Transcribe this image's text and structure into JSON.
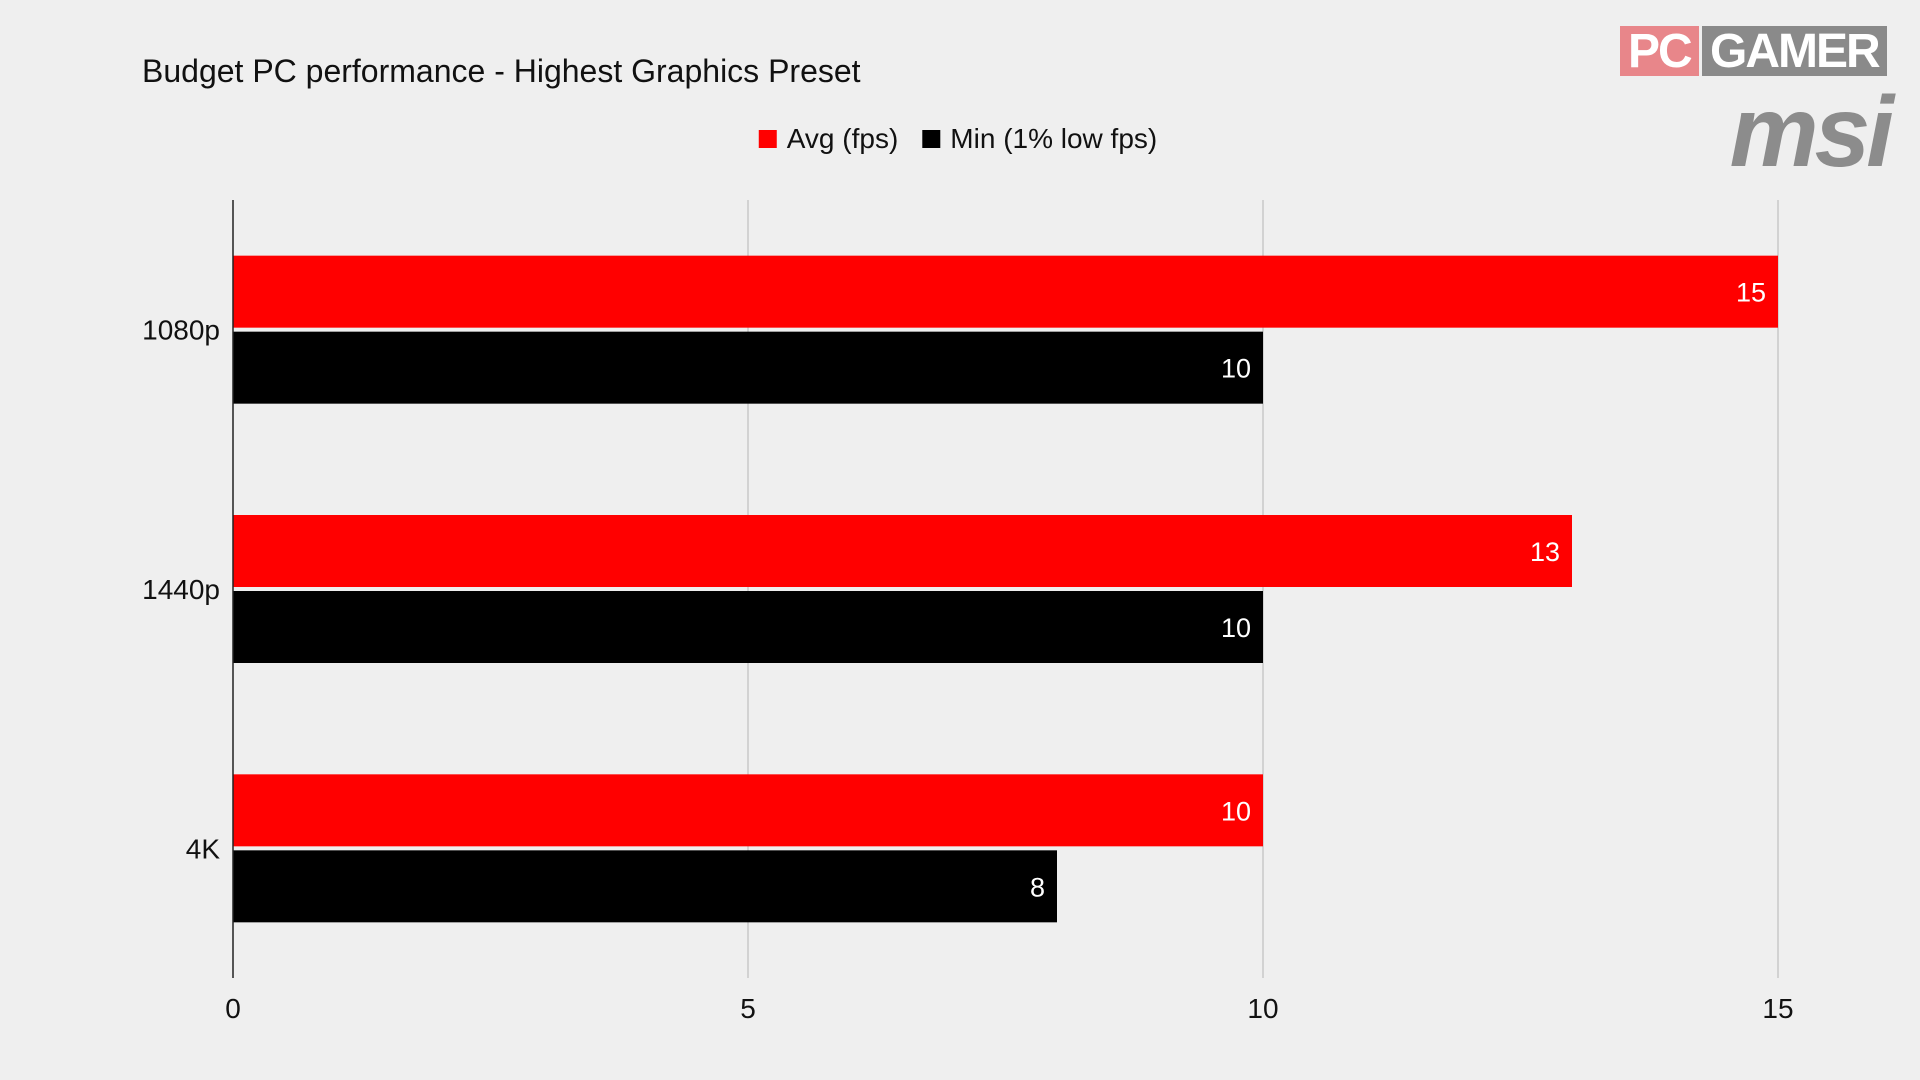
{
  "brand": {
    "pc": "PC",
    "gamer": "GAMER",
    "msi": "msi"
  },
  "chart_data": {
    "type": "bar",
    "orientation": "horizontal",
    "title": "Budget PC performance - Highest Graphics Preset",
    "categories": [
      "1080p",
      "1440p",
      "4K"
    ],
    "series": [
      {
        "name": "Avg (fps)",
        "color": "#ff0000",
        "values": [
          15,
          13,
          10
        ]
      },
      {
        "name": "Min (1% low fps)",
        "color": "#000000",
        "values": [
          10,
          10,
          8
        ]
      }
    ],
    "xlim": [
      0,
      15
    ],
    "xticks": [
      0,
      5,
      10,
      15
    ],
    "grid": true,
    "legend": "top-center",
    "data_labels": true
  }
}
